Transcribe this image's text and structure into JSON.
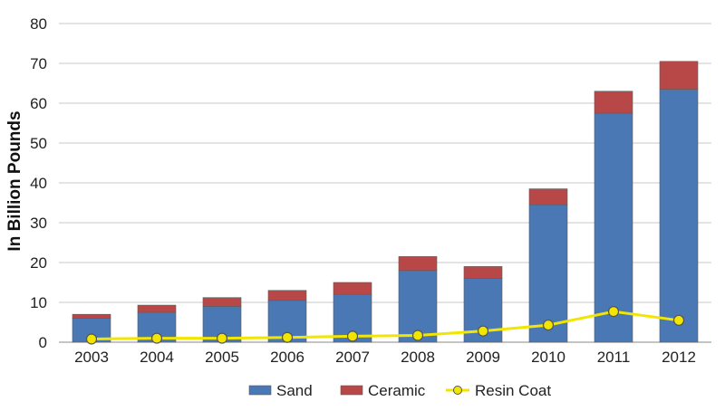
{
  "chart_data": {
    "type": "bar",
    "stacked": true,
    "categories": [
      "2003",
      "2004",
      "2005",
      "2006",
      "2007",
      "2008",
      "2009",
      "2010",
      "2011",
      "2012"
    ],
    "series": [
      {
        "name": "Sand",
        "type": "bar",
        "color": "#4a78b5",
        "values": [
          6,
          7.5,
          9,
          10.5,
          12,
          18,
          16,
          34.5,
          57.5,
          63.5
        ]
      },
      {
        "name": "Ceramic",
        "type": "bar",
        "color": "#b84848",
        "values": [
          1,
          1.8,
          2.2,
          2.5,
          3,
          3.5,
          3,
          4,
          5.5,
          7
        ]
      },
      {
        "name": "Resin Coat",
        "type": "line",
        "color": "#f2e600",
        "values": [
          0.8,
          1,
          1,
          1.2,
          1.5,
          1.7,
          2.8,
          4.3,
          7.7,
          5.5
        ]
      }
    ],
    "ylabel": "In Billion Pounds",
    "xlabel": "",
    "ylim": [
      0,
      80
    ],
    "yticks": [
      0,
      10,
      20,
      30,
      40,
      50,
      60,
      70,
      80
    ],
    "grid": true,
    "legend_position": "bottom"
  }
}
